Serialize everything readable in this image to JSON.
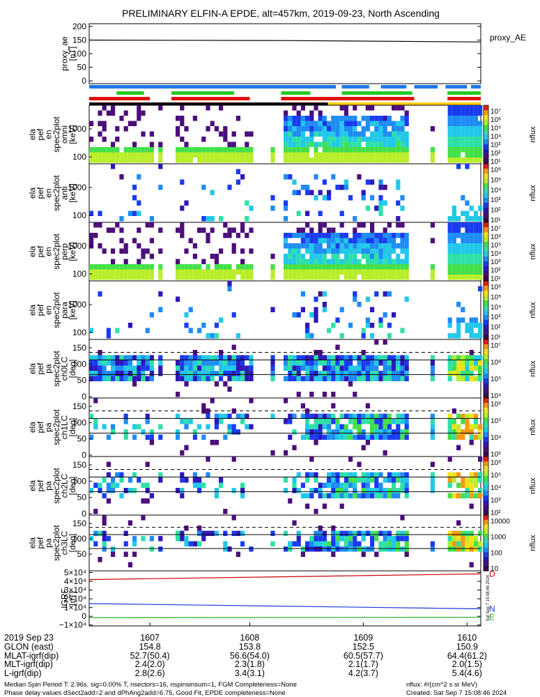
{
  "title": "PRELIMINARY ELFIN-A EPDE, alt=457km, 2019-09-23, North Ascending",
  "bars": {
    "segments": [
      {
        "row": 0,
        "color": "#1e78e6",
        "spans": [
          [
            0.0,
            0.63
          ],
          [
            0.645,
            0.715
          ],
          [
            0.745,
            0.81
          ],
          [
            0.83,
            0.89
          ],
          [
            0.91,
            0.965
          ],
          [
            0.975,
            1.0
          ]
        ]
      },
      {
        "row": 1,
        "color": "#22cc22",
        "spans": [
          [
            0.07,
            0.14
          ],
          [
            0.21,
            0.37
          ],
          [
            0.49,
            0.565
          ],
          [
            0.645,
            0.825
          ],
          [
            0.915,
            1.0
          ]
        ]
      },
      {
        "row": 2,
        "color": "#e01010",
        "spans": [
          [
            0.0,
            0.155
          ],
          [
            0.21,
            0.41
          ],
          [
            0.49,
            0.83
          ],
          [
            0.915,
            1.0
          ]
        ]
      },
      {
        "row": 3,
        "color": "#000000",
        "spans": [
          [
            0.0,
            0.61
          ]
        ]
      },
      {
        "row": 3,
        "color": "#ffcc00",
        "spans": [
          [
            0.61,
            1.0
          ]
        ]
      }
    ]
  },
  "panels": [
    {
      "type": "line",
      "labels": [
        "proxy_ae",
        "[nT]"
      ],
      "ticks": [
        "200",
        "150",
        "100",
        "50",
        "0"
      ],
      "tick_values": [
        200,
        150,
        100,
        50,
        0
      ],
      "ymin": -10,
      "ymax": 210,
      "right_label": "proxy_AE",
      "series": [
        {
          "color": "#000000",
          "x": [
            0,
            0.5,
            1
          ],
          "y": [
            150,
            148,
            143
          ]
        }
      ]
    },
    {
      "type": "spec_energy",
      "labels": [
        "ela",
        "pef",
        "en",
        "spec2plot",
        "omni",
        "[keV]"
      ],
      "ticks": [
        "1000",
        "100"
      ],
      "colorbar_ticks": [
        "10⁷",
        "10⁶",
        "10⁵",
        "10⁴",
        "10³",
        "10²",
        "10¹"
      ],
      "colorbar_label": "nflux",
      "density": "high",
      "seed": 11
    },
    {
      "type": "spec_energy",
      "labels": [
        "ela",
        "pef",
        "en",
        "spec2plot",
        "anti",
        "[keV]"
      ],
      "ticks": [
        "1000",
        "100"
      ],
      "colorbar_ticks": [
        "10⁶",
        "10⁵",
        "10⁴",
        "10³",
        "10²",
        "10¹"
      ],
      "colorbar_label": "nflux",
      "density": "low",
      "seed": 23
    },
    {
      "type": "spec_energy",
      "labels": [
        "ela",
        "pef",
        "en",
        "spec2plot",
        "perp",
        "[keV]"
      ],
      "ticks": [
        "1000",
        "100"
      ],
      "colorbar_ticks": [
        "10⁷",
        "10⁶",
        "10⁵",
        "10⁴",
        "10³",
        "10²",
        "10¹"
      ],
      "colorbar_label": "nflux",
      "density": "high",
      "seed": 37
    },
    {
      "type": "spec_energy",
      "labels": [
        "ela",
        "pef",
        "en",
        "spec2plot",
        "para",
        "[keV]"
      ],
      "ticks": [
        "1000",
        "100"
      ],
      "colorbar_ticks": [
        "10⁶",
        "10⁵",
        "10⁴",
        "10³",
        "10²",
        "10¹"
      ],
      "colorbar_label": "nflux",
      "density": "low",
      "seed": 41
    },
    {
      "type": "spec_pa",
      "labels": [
        "ela",
        "pef",
        "pa",
        "spec2plot",
        "ch0LC",
        "[deg]"
      ],
      "ticks": [
        "150",
        "100",
        "50",
        "0"
      ],
      "colorbar_ticks": [
        "10⁷",
        "10⁶",
        "10⁵",
        "10⁴"
      ],
      "colorbar_label": "nflux",
      "density": "full",
      "seed": 53
    },
    {
      "type": "spec_pa",
      "labels": [
        "ela",
        "pef",
        "pa",
        "spec2plot",
        "ch1LC",
        "[deg]"
      ],
      "ticks": [
        "150",
        "100",
        "50",
        "0"
      ],
      "colorbar_ticks": [
        "10⁶",
        "10⁵",
        "10⁴",
        "10³"
      ],
      "colorbar_label": "nflux",
      "density": "mid",
      "seed": 61
    },
    {
      "type": "spec_pa",
      "labels": [
        "ela",
        "pef",
        "pa",
        "spec2plot",
        "ch2LC",
        "[deg]"
      ],
      "ticks": [
        "150",
        "100",
        "50",
        "0"
      ],
      "colorbar_ticks": [
        "10⁶",
        "10⁵",
        "10⁴",
        "10³",
        "10²"
      ],
      "colorbar_label": "nflux",
      "density": "mid",
      "seed": 71
    },
    {
      "type": "spec_pa",
      "labels": [
        "ela",
        "pef",
        "pa",
        "spec2plot",
        "ch3LC",
        "[deg]"
      ],
      "ticks": [
        "150",
        "100",
        "50"
      ],
      "colorbar_ticks": [
        "10000",
        "1000",
        "100",
        "10"
      ],
      "colorbar_label": "nflux",
      "density": "mid",
      "seed": 83
    },
    {
      "type": "line",
      "labels": [
        "IGRF",
        "[nT]"
      ],
      "ticks": [
        "5×10⁴",
        "4×10⁴",
        "3×10⁴",
        "2×10⁴",
        "1×10⁴",
        "0",
        "−1×10⁴"
      ],
      "tick_values": [
        50000,
        40000,
        30000,
        20000,
        10000,
        0,
        -10000
      ],
      "ymin": -11000,
      "ymax": 52000,
      "series": [
        {
          "name": "D",
          "color": "#cc0000",
          "x": [
            0,
            1
          ],
          "y": [
            42000,
            48500
          ]
        },
        {
          "name": "N",
          "color": "#1a3ad8",
          "x": [
            0,
            1
          ],
          "y": [
            14500,
            8500
          ]
        },
        {
          "name": "E",
          "color": "#22aa22",
          "x": [
            0,
            1
          ],
          "y": [
            -1500,
            -1200
          ]
        }
      ],
      "right_labels": [
        {
          "text": "D",
          "color": "#cc0000"
        },
        {
          "text": "N",
          "color": "#1a3ad8"
        },
        {
          "text": "E",
          "color": "#22aa22"
        }
      ]
    }
  ],
  "chart_data": {
    "type": "heatmap",
    "title": "PRELIMINARY ELFIN-A EPDE, alt=457km, 2019-09-23, North Ascending",
    "x_ticks": [
      "1607",
      "1608",
      "1609",
      "1610"
    ],
    "proxy_ae": {
      "ylabel": "proxy_ae [nT]",
      "ylim": [
        0,
        200
      ],
      "values": [
        150,
        148,
        143
      ]
    },
    "igrf": {
      "ylabel": "IGRF [nT]",
      "ylim": [
        -10000,
        50000
      ],
      "D": [
        42000,
        48500
      ],
      "N": [
        14500,
        8500
      ],
      "E": [
        -1500,
        -1200
      ]
    }
  },
  "x_axis": {
    "ticks": [
      {
        "label": "1607",
        "glon": "154.8",
        "mlat": "52.7(50.4)",
        "mlt": "2.4(2.0)",
        "l": "2.8(2.6)"
      },
      {
        "label": "1608",
        "glon": "153.8",
        "mlat": "56.6(54.0)",
        "mlt": "2.3(1.8)",
        "l": "3.4(3.1)"
      },
      {
        "label": "1609",
        "glon": "152.5",
        "mlat": "60.5(57.7)",
        "mlt": "2.1(1.7)",
        "l": "4.2(3.7)"
      },
      {
        "label": "1610",
        "glon": "150.9",
        "mlat": "64.4(61.2)",
        "mlt": "2.0(1.5)",
        "l": "5.4(4.6)"
      }
    ],
    "row_labels": [
      "2019 Sep 23",
      "GLON (east)",
      "MLAT-igrf(dip)",
      "MLT-igrf(dip)",
      "L-igrf(dip)"
    ]
  },
  "footer": {
    "line1": "Median Spin Period T: 2.96s, sig=0.00% T, nsectors=16, nspinsinsum=1, FGM Completeness=None",
    "line2": "Phase delay values dSect2add=2 and dPhAng2add=6.75, Good Fit, EPDE completeness=None",
    "units": "nflux: #/(cm^2 s sr MeV)",
    "created": "Created: Sat Sep  7 15:08:46 2024",
    "side_stamp": "Sat Sep  7 15:08:46 2024"
  }
}
